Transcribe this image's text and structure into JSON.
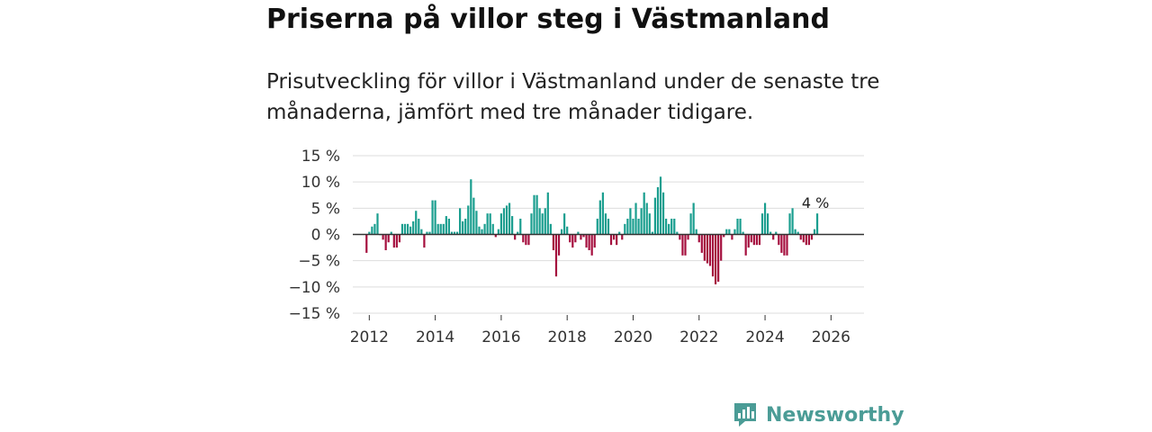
{
  "title": "Priserna på villor steg i Västmanland",
  "subtitle": "Prisutveckling för villor i Västmanland under de senaste tre månaderna, jämfört med tre månader tidigare.",
  "brand": {
    "name": "Newsworthy",
    "icon": "newsworthy-logo-icon",
    "color": "#4b9c96"
  },
  "colors": {
    "positive": "#1a9e8f",
    "negative": "#a50f3e",
    "grid": "#dddddd",
    "zero": "#333333"
  },
  "chart_data": {
    "type": "bar",
    "title": "Priserna på villor steg i Västmanland",
    "xlabel": "",
    "ylabel": "",
    "ylim": [
      -15,
      15
    ],
    "yticks": [
      15,
      10,
      5,
      0,
      -5,
      -10,
      -15
    ],
    "ytick_labels": [
      "15 %",
      "10 %",
      "5 %",
      "0 %",
      "−5 %",
      "−10 %",
      "−15 %"
    ],
    "xticks": [
      2012,
      2014,
      2016,
      2018,
      2020,
      2022,
      2024,
      2026
    ],
    "xtick_labels": [
      "2012",
      "2014",
      "2016",
      "2018",
      "2020",
      "2022",
      "2024",
      "2026"
    ],
    "x_start": 2011.9167,
    "x_step": 0.08333,
    "values": [
      -3.5,
      0.5,
      1.5,
      2,
      4,
      0,
      -1,
      -3,
      -1.5,
      0.5,
      -2.5,
      -2.5,
      -1.5,
      2,
      2,
      2,
      1.5,
      2.5,
      4.5,
      3,
      1,
      -2.5,
      0.5,
      0.5,
      6.5,
      6.5,
      2,
      2,
      2,
      3.5,
      3,
      0.5,
      0.5,
      0.5,
      5,
      2.5,
      3,
      5.5,
      10.5,
      7,
      4.5,
      1.5,
      1,
      2,
      4,
      4,
      2,
      -0.5,
      1,
      4,
      5,
      5.5,
      6,
      3.5,
      -1,
      0.5,
      3,
      -1.5,
      -2,
      -2,
      4,
      7.5,
      7.5,
      5,
      4,
      5,
      8,
      2,
      -3,
      -8,
      -4,
      1,
      4,
      1.5,
      -1.5,
      -2.5,
      -1.5,
      0.5,
      -1,
      -0.5,
      -2.5,
      -3,
      -4,
      -2.5,
      3,
      6.5,
      8,
      4,
      3,
      -2,
      -1,
      -2,
      0.5,
      -1,
      2,
      3,
      5,
      3,
      6,
      3,
      5,
      8,
      6,
      4,
      0.5,
      7,
      9,
      11,
      8,
      3,
      2,
      3,
      3,
      0.5,
      -1,
      -4,
      -4,
      -1,
      4,
      6,
      1,
      -1.5,
      -3.5,
      -5,
      -5.5,
      -6,
      -8,
      -9.5,
      -9,
      -5,
      -0.5,
      1,
      1,
      -1,
      1,
      3,
      3,
      0.5,
      -4,
      -2.5,
      -1.5,
      -2,
      -2,
      -2,
      4,
      6,
      4,
      0.5,
      -1,
      0.5,
      -2,
      -3.5,
      -4,
      -4,
      4,
      5,
      1,
      0.5,
      -1,
      -1.5,
      -2,
      -2,
      -1,
      1,
      4
    ],
    "last_label": "4 %"
  }
}
